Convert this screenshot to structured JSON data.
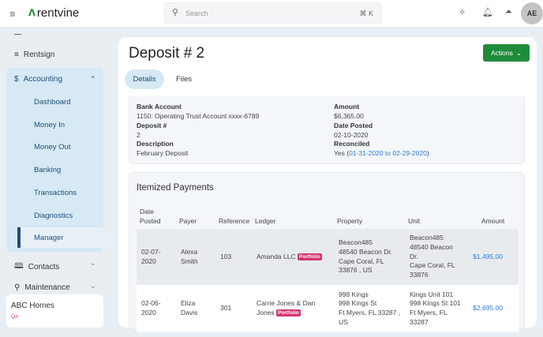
{
  "header": {
    "brand": "rentvine",
    "search_placeholder": "Search",
    "search_shortcut": "⌘ K",
    "avatar_initials": "AE"
  },
  "sidebar": {
    "items": [
      {
        "label": "Rentsign",
        "icon": "rentsign-icon"
      },
      {
        "label": "Accounting",
        "icon": "dollar-icon",
        "expanded": true
      },
      {
        "label": "Contacts",
        "icon": "book-icon"
      },
      {
        "label": "Maintenance",
        "icon": "wrench-icon"
      }
    ],
    "accounting_sub": [
      "Dashboard",
      "Money In",
      "Money Out",
      "Banking",
      "Transactions",
      "Diagnostics",
      "Manager"
    ],
    "selected": "Banking",
    "org": {
      "name": "ABC Homes",
      "env": "QA"
    }
  },
  "page": {
    "title": "Deposit # 2",
    "actions_label": "Actions",
    "tabs": [
      "Details",
      "Files"
    ],
    "active_tab": "Details"
  },
  "details": {
    "bank_account_label": "Bank Account",
    "bank_account": "1150: Operating Trust Account xxxx-6789",
    "deposit_label": "Deposit #",
    "deposit": "2",
    "description_label": "Description",
    "description": "February Deposit",
    "amount_label": "Amount",
    "amount": "$6,365.00",
    "date_posted_label": "Date Posted",
    "date_posted": "02-10-2020",
    "reconciled_label": "Reconciled",
    "reconciled_prefix": "Yes (",
    "reconciled_link": "01-31-2020 to 02-29-2020",
    "reconciled_suffix": ")"
  },
  "itemized": {
    "title": "Itemized Payments",
    "columns": [
      "Date\nPosted",
      "Payer",
      "Reference",
      "Ledger",
      "Property",
      "Unit",
      "Amount"
    ],
    "rows": [
      {
        "date": "02-07-\n2020",
        "payer": "Alexa\nSmith",
        "reference": "103",
        "ledger": "Amanda LLC",
        "badge": "Portfolio",
        "property": "Beacon485\n48540 Beacon Dr.\nCape Coral, FL\n33876 , US",
        "unit": "Beacon485\n48540 Beacon\nDr.\nCape Coral, FL\n33876",
        "amount": "$1,495.00"
      },
      {
        "date": "02-06-\n2020",
        "payer": "Eliza\nDavis",
        "reference": "301",
        "ledger": "Carrie Jones & Dan\nJones",
        "badge": "Portfolio",
        "property": "998 Kings\n998 Kings St\nFt Myers, FL 33287 ,\nUS",
        "unit": "Kings Unit 101\n998 Kings St 101\nFt Myers, FL\n33287",
        "amount": "$2,695.00"
      }
    ]
  },
  "colors": {
    "accent": "#1e8c3a",
    "link": "#2d7dd2",
    "badge": "#d63371",
    "nav_active": "#d6e9f5"
  }
}
